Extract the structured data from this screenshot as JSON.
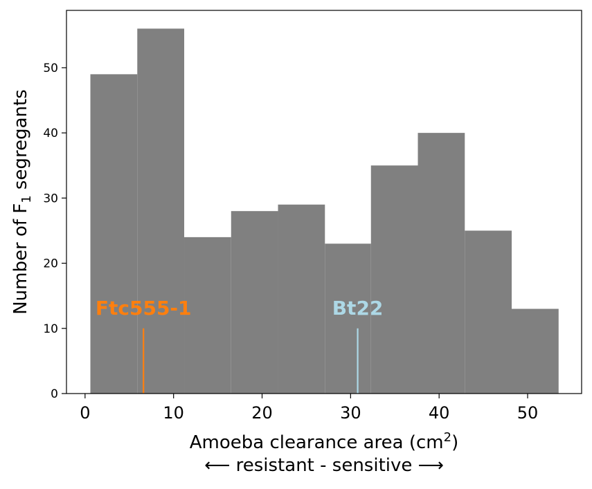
{
  "chart_data": {
    "type": "histogram",
    "xlabel": "Amoeba clearance area (cm",
    "xlabel_sup": "2",
    "xlabel_close": ")",
    "xlabel_line2": "⟵ resistant - sensitive ⟶",
    "ylabel": "Number of F",
    "ylabel_sub": "1",
    "ylabel_rest": " segregants",
    "xlim": [
      -2.1,
      56.1
    ],
    "ylim": [
      0,
      58.8
    ],
    "xticks": [
      0,
      10,
      20,
      30,
      40,
      50
    ],
    "yticks": [
      0,
      10,
      20,
      30,
      40,
      50
    ],
    "bins": [
      {
        "x0": 0.6,
        "x1": 5.9,
        "count": 49
      },
      {
        "x0": 5.9,
        "x1": 11.2,
        "count": 56
      },
      {
        "x0": 11.2,
        "x1": 16.5,
        "count": 24
      },
      {
        "x0": 16.5,
        "x1": 21.8,
        "count": 28
      },
      {
        "x0": 21.8,
        "x1": 27.1,
        "count": 29
      },
      {
        "x0": 27.1,
        "x1": 32.3,
        "count": 23
      },
      {
        "x0": 32.3,
        "x1": 37.6,
        "count": 35
      },
      {
        "x0": 37.6,
        "x1": 42.9,
        "count": 40
      },
      {
        "x0": 42.9,
        "x1": 48.2,
        "count": 25
      },
      {
        "x0": 48.2,
        "x1": 53.5,
        "count": 13
      }
    ],
    "bar_color": "#808080",
    "markers": [
      {
        "label": "Ftc555-1",
        "x": 6.6,
        "height": 10,
        "color": "#ff7f0e"
      },
      {
        "label": "Bt22",
        "x": 30.8,
        "height": 10,
        "color": "#add8e6"
      }
    ]
  }
}
